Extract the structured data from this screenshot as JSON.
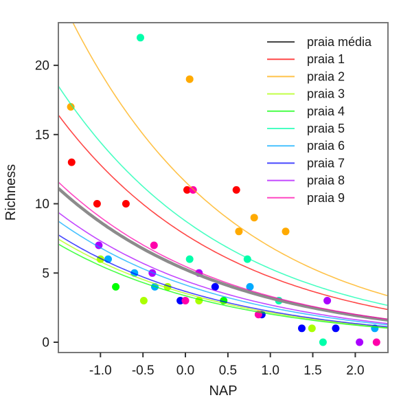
{
  "figure": {
    "background": "#FFFFFF",
    "plot_border_color": "#777777",
    "tick_color": "#333333",
    "text_color": "#1a1a1a",
    "mean_curve_color": "#8C8C8C",
    "legend_mean_line_color": "#444444"
  },
  "chart_data": {
    "type": "scatter",
    "title": "",
    "xlabel": "NAP",
    "ylabel": "Richness",
    "xlim": [
      -1.496,
      2.385
    ],
    "ylim": [
      -0.745,
      23.08
    ],
    "x_ticks": [
      -1.0,
      -0.5,
      0.0,
      0.5,
      1.0,
      1.5,
      2.0
    ],
    "x_tick_labels": [
      "-1.0",
      "-0.5",
      "0.0",
      "0.5",
      "1.0",
      "1.5",
      "2.0"
    ],
    "y_ticks": [
      0,
      5,
      10,
      15,
      20
    ],
    "y_tick_labels": [
      "0",
      "5",
      "10",
      "15",
      "20"
    ],
    "grid": false,
    "legend_position": "top-right-inside",
    "curve_model": "richness = exp(intercept + slope * NAP)",
    "series": [
      {
        "name": "praia média",
        "color": "#8C8C8C",
        "legend_color": "#444444",
        "line_width": 4.5,
        "line_opacity": 1.0,
        "curve": {
          "intercept": 1.66,
          "slope": -0.5
        },
        "points": []
      },
      {
        "name": "praia 1",
        "color": "#FF0000",
        "legend_color": "#FF0000",
        "line_width": 1.6,
        "line_opacity": 0.72,
        "curve": {
          "intercept": 2.05,
          "slope": -0.5
        },
        "points": [
          [
            -1.34,
            13
          ],
          [
            -1.04,
            10
          ],
          [
            -0.7,
            10
          ],
          [
            0.02,
            11
          ],
          [
            0.6,
            11
          ]
        ]
      },
      {
        "name": "praia 2",
        "color": "#FFAA00",
        "legend_color": "#FFAA00",
        "line_width": 1.6,
        "line_opacity": 0.72,
        "curve": {
          "intercept": 2.45,
          "slope": -0.52
        },
        "points": [
          [
            -1.35,
            17
          ],
          [
            0.05,
            19
          ],
          [
            0.63,
            8
          ],
          [
            0.81,
            9
          ],
          [
            1.18,
            8
          ]
        ]
      },
      {
        "name": "praia 3",
        "color": "#AAFF00",
        "legend_color": "#AAFF00",
        "line_width": 1.6,
        "line_opacity": 0.72,
        "curve": {
          "intercept": 1.26,
          "slope": -0.5
        },
        "points": [
          [
            -1.0,
            6
          ],
          [
            -0.49,
            3
          ],
          [
            -0.21,
            4
          ],
          [
            0.16,
            3
          ],
          [
            1.49,
            1
          ]
        ]
      },
      {
        "name": "praia 4",
        "color": "#00FF00",
        "legend_color": "#00FF00",
        "line_width": 1.6,
        "line_opacity": 0.72,
        "curve": {
          "intercept": 1.21,
          "slope": -0.5
        },
        "points": [
          [
            -0.82,
            4
          ],
          [
            0.45,
            3
          ]
        ]
      },
      {
        "name": "praia 5",
        "color": "#00FFAA",
        "legend_color": "#00FFAA",
        "line_width": 1.6,
        "line_opacity": 0.72,
        "curve": {
          "intercept": 2.17,
          "slope": -0.5
        },
        "points": [
          [
            -0.53,
            22
          ],
          [
            0.05,
            6
          ],
          [
            0.73,
            6
          ],
          [
            1.1,
            3
          ],
          [
            1.62,
            0
          ]
        ]
      },
      {
        "name": "praia 6",
        "color": "#00AAFF",
        "legend_color": "#00AAFF",
        "line_width": 1.6,
        "line_opacity": 0.72,
        "curve": {
          "intercept": 1.42,
          "slope": -0.5
        },
        "points": [
          [
            -0.91,
            6
          ],
          [
            -0.6,
            5
          ],
          [
            -0.36,
            4
          ],
          [
            0.76,
            4
          ],
          [
            2.23,
            1
          ]
        ]
      },
      {
        "name": "praia 7",
        "color": "#0000FF",
        "legend_color": "#0000FF",
        "line_width": 1.6,
        "line_opacity": 0.72,
        "curve": {
          "intercept": 1.3,
          "slope": -0.5
        },
        "points": [
          [
            -0.06,
            3
          ],
          [
            0.35,
            4
          ],
          [
            0.9,
            2
          ],
          [
            1.37,
            1
          ],
          [
            1.77,
            1
          ]
        ]
      },
      {
        "name": "praia 8",
        "color": "#AA00FF",
        "legend_color": "#AA00FF",
        "line_width": 1.6,
        "line_opacity": 0.72,
        "curve": {
          "intercept": 1.49,
          "slope": -0.5
        },
        "points": [
          [
            -1.02,
            7
          ],
          [
            -0.39,
            5
          ],
          [
            0.16,
            5
          ],
          [
            1.67,
            3
          ],
          [
            2.05,
            0
          ]
        ]
      },
      {
        "name": "praia 9",
        "color": "#FF00AA",
        "legend_color": "#FF00AA",
        "line_width": 1.6,
        "line_opacity": 0.72,
        "curve": {
          "intercept": 1.7,
          "slope": -0.5
        },
        "points": [
          [
            -0.37,
            7
          ],
          [
            0.09,
            11
          ],
          [
            0.0,
            3
          ],
          [
            0.86,
            2
          ],
          [
            2.25,
            0
          ]
        ]
      }
    ]
  }
}
